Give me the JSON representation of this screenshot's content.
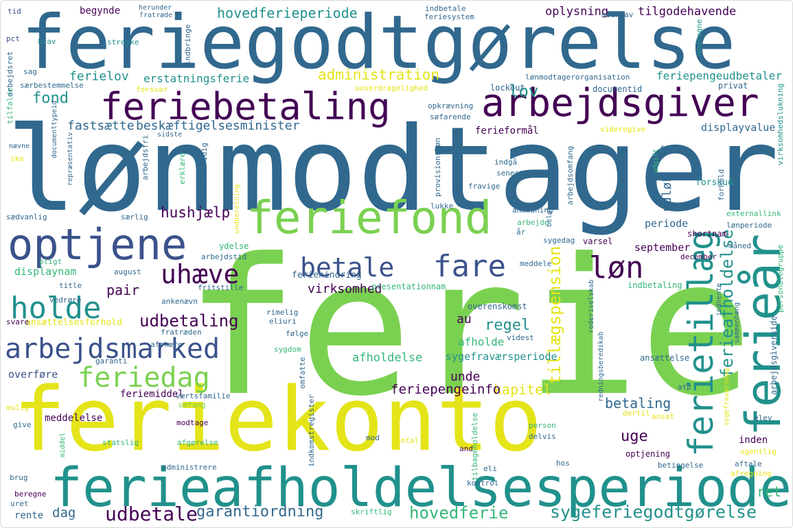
{
  "palette": {
    "dark_purple": "#440154",
    "indigo": "#3b528b",
    "blue": "#31688e",
    "teal": "#21918c",
    "green": "#35b779",
    "lime": "#7ad151",
    "yellow": "#e4e419"
  },
  "words": [
    {
      "text": "ferie",
      "color": "lime"
    },
    {
      "text": "lønmodtager",
      "color": "blue"
    },
    {
      "text": "feriegodtgørelse",
      "color": "blue"
    },
    {
      "text": "feriekonto",
      "color": "yellow"
    },
    {
      "text": "ferieafholdelsesperiode",
      "color": "teal"
    },
    {
      "text": "feriebetaling",
      "color": "dark_purple"
    },
    {
      "text": "arbejdsgiver",
      "color": "dark_purple"
    },
    {
      "text": "optjene",
      "color": "indigo"
    },
    {
      "text": "feriefond",
      "color": "lime"
    },
    {
      "text": "ferieår",
      "color": "teal"
    },
    {
      "text": "ferietillæg",
      "color": "teal"
    },
    {
      "text": "fare",
      "color": "indigo"
    },
    {
      "text": "betale",
      "color": "indigo"
    },
    {
      "text": "løn",
      "color": "dark_purple"
    },
    {
      "text": "uhæve",
      "color": "dark_purple"
    },
    {
      "text": "holde",
      "color": "teal"
    },
    {
      "text": "arbejdsmarked",
      "color": "indigo"
    },
    {
      "text": "feriedag",
      "color": "lime"
    },
    {
      "text": "udbetaling",
      "color": "dark_purple"
    },
    {
      "text": "sygeferiegodtgørelse",
      "color": "teal"
    },
    {
      "text": "udbetale",
      "color": "dark_purple"
    },
    {
      "text": "garantiordning",
      "color": "blue"
    },
    {
      "text": "hovedferie",
      "color": "green"
    },
    {
      "text": "hovedferieperiode",
      "color": "teal"
    },
    {
      "text": "administration",
      "color": "yellow"
    },
    {
      "text": "beskæftigelsesminister",
      "color": "blue"
    },
    {
      "text": "fastsætte",
      "color": "blue"
    },
    {
      "text": "hushjælp",
      "color": "dark_purple"
    },
    {
      "text": "ferieafholdelse",
      "color": "teal"
    },
    {
      "text": "tillægspension",
      "color": "yellow"
    },
    {
      "text": "lov",
      "color": "teal"
    },
    {
      "text": "fond",
      "color": "teal"
    },
    {
      "text": "ferielov",
      "color": "teal"
    },
    {
      "text": "erstatningsferie",
      "color": "teal"
    },
    {
      "text": "virksomhed",
      "color": "dark_purple"
    },
    {
      "text": "pair",
      "color": "dark_purple"
    },
    {
      "text": "regel",
      "color": "teal"
    },
    {
      "text": "au",
      "color": "dark_purple"
    },
    {
      "text": "uge",
      "color": "dark_purple"
    },
    {
      "text": "betaling",
      "color": "blue"
    },
    {
      "text": "kapitel",
      "color": "yellow"
    },
    {
      "text": "feriepengeinfo",
      "color": "dark_purple"
    },
    {
      "text": "unde",
      "color": "dark_purple"
    },
    {
      "text": "ret",
      "color": "green"
    },
    {
      "text": "dag",
      "color": "blue"
    },
    {
      "text": "oplysning",
      "color": "dark_purple"
    },
    {
      "text": "tilgodehavende",
      "color": "dark_purple"
    },
    {
      "text": "feriepengeudbetaler",
      "color": "teal"
    },
    {
      "text": "begynde",
      "color": "dark_purple"
    },
    {
      "text": "udløb",
      "color": "blue"
    },
    {
      "text": "periode",
      "color": "blue"
    },
    {
      "text": "september",
      "color": "dark_purple"
    },
    {
      "text": "afholdelse",
      "color": "green"
    },
    {
      "text": "afholde",
      "color": "green"
    },
    {
      "text": "sygefraværsperiode",
      "color": "teal"
    },
    {
      "text": "ferieformål",
      "color": "dark_purple"
    },
    {
      "text": "displayvalue",
      "color": "blue"
    },
    {
      "text": "overføre",
      "color": "indigo"
    },
    {
      "text": "feriemiddel",
      "color": "dark_purple"
    },
    {
      "text": "meddelelse",
      "color": "dark_purple"
    },
    {
      "text": "displaynam",
      "color": "green"
    },
    {
      "text": "ansættelsesforhold",
      "color": "yellow"
    },
    {
      "text": "rente",
      "color": "blue"
    },
    {
      "text": "feriehindring",
      "color": "blue"
    },
    {
      "text": "forskud",
      "color": "teal"
    },
    {
      "text": "krav",
      "color": "teal"
    },
    {
      "text": "strejke",
      "color": "teal"
    },
    {
      "text": "sag",
      "color": "blue"
    },
    {
      "text": "pct",
      "color": "indigo"
    },
    {
      "text": "tid",
      "color": "indigo"
    },
    {
      "text": "lønmodtagerorganisation",
      "color": "blue"
    },
    {
      "text": "documentid",
      "color": "blue"
    },
    {
      "text": "lockout",
      "color": "blue"
    },
    {
      "text": "privat",
      "color": "blue"
    },
    {
      "text": "shortnam",
      "color": "dark_purple"
    },
    {
      "text": "særlig",
      "color": "blue"
    },
    {
      "text": "sædvanlig",
      "color": "blue"
    },
    {
      "text": "ydelse",
      "color": "green"
    },
    {
      "text": "arbejdstid",
      "color": "blue"
    },
    {
      "text": "august",
      "color": "blue"
    },
    {
      "text": "varsel",
      "color": "dark_purple"
    },
    {
      "text": "sygedag",
      "color": "blue"
    },
    {
      "text": "meddele",
      "color": "blue"
    },
    {
      "text": "december",
      "color": "dark_purple"
    },
    {
      "text": "måned",
      "color": "blue"
    },
    {
      "text": "lønperiode",
      "color": "blue"
    },
    {
      "text": "externallink",
      "color": "green"
    },
    {
      "text": "arbejde",
      "color": "green"
    },
    {
      "text": "anmodning",
      "color": "blue"
    },
    {
      "text": "fravige",
      "color": "blue"
    },
    {
      "text": "senest",
      "color": "blue"
    },
    {
      "text": "lukke",
      "color": "blue"
    },
    {
      "text": "overenskomst",
      "color": "blue"
    },
    {
      "text": "indbetaling",
      "color": "green"
    },
    {
      "text": "presentationnam",
      "color": "green"
    },
    {
      "text": "ansættelse",
      "color": "blue"
    },
    {
      "text": "fritstille",
      "color": "blue"
    },
    {
      "text": "rimelig",
      "color": "blue"
    },
    {
      "text": "eliuri",
      "color": "blue"
    },
    {
      "text": "følge",
      "color": "blue"
    },
    {
      "text": "videst",
      "color": "blue"
    },
    {
      "text": "sygdom",
      "color": "green"
    },
    {
      "text": "omfatte",
      "color": "blue"
    },
    {
      "text": "værtsfamilie",
      "color": "blue"
    },
    {
      "text": "omfang",
      "color": "lime"
    },
    {
      "text": "afskære",
      "color": "blue"
    },
    {
      "text": "garanti",
      "color": "blue"
    },
    {
      "text": "fratræden",
      "color": "blue"
    },
    {
      "text": "svare",
      "color": "dark_purple"
    },
    {
      "text": "ankenævn",
      "color": "blue"
    },
    {
      "text": "vedrøre",
      "color": "blue"
    },
    {
      "text": "title",
      "color": "blue"
    },
    {
      "text": "mulig",
      "color": "yellow"
    },
    {
      "text": "give",
      "color": "blue"
    },
    {
      "text": "statslig",
      "color": "green"
    },
    {
      "text": "afgørelse",
      "color": "green"
    },
    {
      "text": "modtage",
      "color": "dark_purple"
    },
    {
      "text": "administrere",
      "color": "blue"
    },
    {
      "text": "antal",
      "color": "yellow"
    },
    {
      "text": "mod",
      "color": "blue"
    },
    {
      "text": "and",
      "color": "dark_purple"
    },
    {
      "text": "delvis",
      "color": "blue"
    },
    {
      "text": "person",
      "color": "green"
    },
    {
      "text": "hos",
      "color": "blue"
    },
    {
      "text": "eli",
      "color": "blue"
    },
    {
      "text": "kontrol",
      "color": "blue"
    },
    {
      "text": "betingelse",
      "color": "blue"
    },
    {
      "text": "optjening",
      "color": "dark_purple"
    },
    {
      "text": "inden",
      "color": "dark_purple"
    },
    {
      "text": "ugentlig",
      "color": "yellow"
    },
    {
      "text": "aftale",
      "color": "blue"
    },
    {
      "text": "afregning",
      "color": "yellow"
    },
    {
      "text": "elev",
      "color": "blue"
    },
    {
      "text": "ansat",
      "color": "yellow"
    },
    {
      "text": "dertil",
      "color": "yellow"
    },
    {
      "text": "atp",
      "color": "blue"
    },
    {
      "text": "brug",
      "color": "blue"
    },
    {
      "text": "beregne",
      "color": "dark_purple"
    },
    {
      "text": "uret",
      "color": "blue"
    },
    {
      "text": "skriftlig",
      "color": "green"
    },
    {
      "text": "indbetale",
      "color": "blue"
    },
    {
      "text": "feriesystem",
      "color": "blue"
    },
    {
      "text": "modkrav",
      "color": "blue"
    },
    {
      "text": "herunder",
      "color": "blue"
    },
    {
      "text": "fratræde",
      "color": "blue"
    },
    {
      "text": "indbringe",
      "color": "blue"
    },
    {
      "text": "forsvar",
      "color": "yellow"
    },
    {
      "text": "særbestemmelse",
      "color": "blue"
    },
    {
      "text": "uoverdragelighed",
      "color": "yellow"
    },
    {
      "text": "opkrævning",
      "color": "blue"
    },
    {
      "text": "søfarende",
      "color": "blue"
    },
    {
      "text": "sidste",
      "color": "blue"
    },
    {
      "text": "videregive",
      "color": "yellow"
    },
    {
      "text": "indgå",
      "color": "blue"
    },
    {
      "text": "provisionsløn",
      "color": "blue"
    },
    {
      "text": "nævne",
      "color": "blue"
    },
    {
      "text": "ske",
      "color": "yellow"
    },
    {
      "text": "tilfalde",
      "color": "green"
    },
    {
      "text": "arbejdsret",
      "color": "blue"
    },
    {
      "text": "documenttypeid",
      "color": "blue"
    },
    {
      "text": "repræsentativ",
      "color": "blue"
    },
    {
      "text": "arbejdsfri",
      "color": "blue"
    },
    {
      "text": "erklære",
      "color": "green"
    },
    {
      "text": "retsstridig",
      "color": "blue"
    },
    {
      "text": "undberetning",
      "color": "yellow"
    },
    {
      "text": "arbejdsomfang",
      "color": "blue"
    },
    {
      "text": "udgift",
      "color": "green"
    },
    {
      "text": "indkomstregister",
      "color": "blue"
    },
    {
      "text": "rederiselskab",
      "color": "blue"
    },
    {
      "text": "redningsberedskab",
      "color": "blue"
    },
    {
      "text": "sygefraværsdag",
      "color": "yellow"
    },
    {
      "text": "modregne",
      "color": "teal"
    },
    {
      "text": "virksomhedslukning",
      "color": "teal"
    },
    {
      "text": "arbejdsgiverside",
      "color": "blue"
    },
    {
      "text": "personalegruppe",
      "color": "green"
    },
    {
      "text": "indhente",
      "color": "blue"
    },
    {
      "text": "sammenhæng",
      "color": "blue"
    },
    {
      "text": "tilbageholdelse",
      "color": "green"
    },
    {
      "text": "forhold",
      "color": "blue"
    },
    {
      "text": "ft",
      "color": "blue"
    },
    {
      "text": "år",
      "color": "blue"
    },
    {
      "text": "beløb",
      "color": "blue"
    },
    {
      "text": "pligt",
      "color": "green"
    },
    {
      "text": "middel",
      "color": "green"
    }
  ]
}
